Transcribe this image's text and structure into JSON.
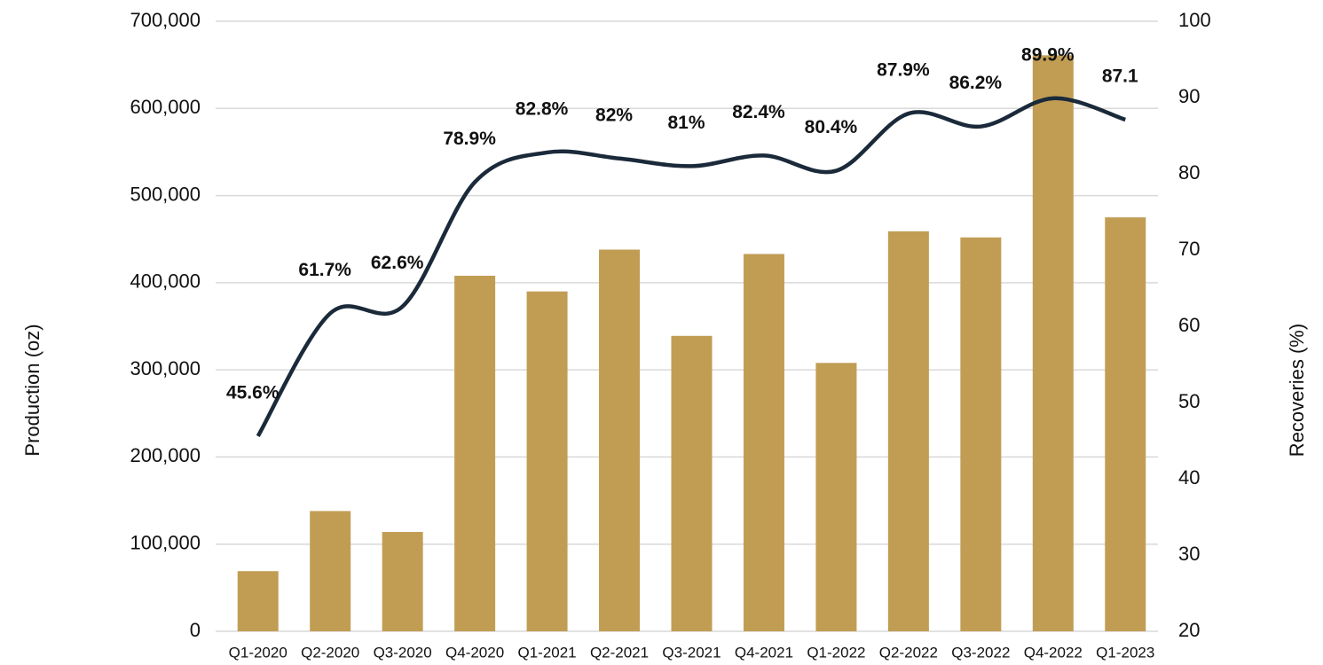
{
  "chart_data": {
    "type": "bar_line",
    "categories": [
      "Q1-2020",
      "Q2-2020",
      "Q3-2020",
      "Q4-2020",
      "Q1-2021",
      "Q2-2021",
      "Q3-2021",
      "Q4-2021",
      "Q1-2022",
      "Q2-2022",
      "Q3-2022",
      "Q4-2022",
      "Q1-2023"
    ],
    "y_label": "Production (oz)",
    "y2_label": "Recoveries (%)",
    "ylim": [
      0,
      700000
    ],
    "yticks": [
      0,
      {
        "value": 100000,
        "label": "100,000"
      },
      {
        "value": 200000,
        "label": "200,000"
      },
      {
        "value": 300000,
        "label": "300,000"
      },
      {
        "value": 400000,
        "label": "400,000"
      },
      {
        "value": 500000,
        "label": "500,000"
      },
      {
        "value": 600000,
        "label": "600,000"
      },
      {
        "value": 700000,
        "label": "700,000"
      }
    ],
    "y2lim": [
      20,
      100
    ],
    "y2ticks": [
      20,
      30,
      40,
      50,
      60,
      70,
      80,
      90,
      100
    ],
    "grid": true,
    "series": [
      {
        "name": "Production",
        "type": "bar",
        "color": "#c19d54",
        "values": [
          69000,
          138000,
          114000,
          408000,
          390000,
          438000,
          339000,
          433000,
          308000,
          459000,
          452000,
          661000,
          475000
        ]
      },
      {
        "name": "Recoveries",
        "type": "line",
        "axis": "y2",
        "color": "#1b2a3a",
        "values": [
          45.6,
          61.7,
          62.6,
          78.9,
          82.8,
          82,
          81,
          82.4,
          80.4,
          87.9,
          86.2,
          89.9,
          87.1
        ],
        "value_labels": [
          "45.6%",
          "61.7%",
          "62.6%",
          "78.9%",
          "82.8%",
          "82%",
          "81%",
          "82.4%",
          "80.4%",
          "87.9%",
          "86.2%",
          "89.9%",
          "87.1"
        ]
      }
    ]
  }
}
